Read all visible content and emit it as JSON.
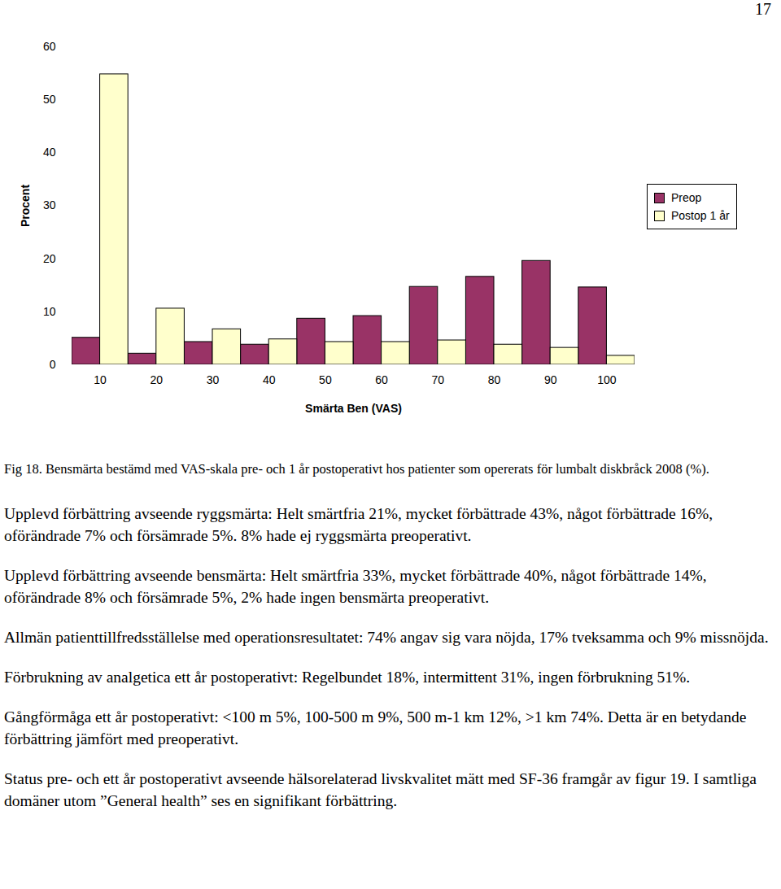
{
  "page_number": "17",
  "chart_data": {
    "type": "bar",
    "xlabel": "Smärta Ben (VAS)",
    "ylabel": "Procent",
    "categories": [
      "10",
      "20",
      "30",
      "40",
      "50",
      "60",
      "70",
      "80",
      "90",
      "100"
    ],
    "series": [
      {
        "name": "Preop",
        "color": "#993366",
        "values": [
          5.1,
          2.1,
          4.3,
          3.8,
          8.7,
          9.2,
          14.7,
          16.6,
          19.6,
          14.6
        ]
      },
      {
        "name": "Postop 1 år",
        "color": "#ffffcc",
        "values": [
          54.8,
          10.6,
          6.7,
          4.8,
          4.3,
          4.3,
          4.6,
          3.8,
          3.2,
          1.7
        ]
      }
    ],
    "ylim": [
      0,
      60
    ],
    "yticks": [
      0,
      10,
      20,
      30,
      40,
      50,
      60
    ],
    "grid": false,
    "legend": "right"
  },
  "caption": "Fig 18. Bensmärta bestämd med VAS-skala pre- och 1 år postoperativt hos patienter som opererats för lumbalt diskbråck 2008 (%).",
  "paragraphs": [
    "Upplevd förbättring avseende ryggsmärta: Helt smärtfria 21%, mycket förbättrade 43%, något förbättrade 16%, oförändrade 7% och försämrade 5%. 8% hade ej ryggsmärta preoperativt.",
    "Upplevd förbättring avseende bensmärta: Helt smärtfria 33%, mycket förbättrade 40%, något förbättrade 14%, oförändrade 8% och försämrade 5%, 2% hade ingen bensmärta preoperativt.",
    "Allmän patienttillfredsställelse med operationsresultatet: 74% angav sig vara nöjda, 17% tveksamma och 9% missnöjda.",
    "Förbrukning av analgetica ett år postoperativt: Regelbundet 18%, intermittent 31%, ingen förbrukning 51%.",
    "Gångförmåga ett år postoperativt: <100 m 5%, 100-500 m 9%, 500 m-1 km 12%, >1 km 74%. Detta är en betydande förbättring jämfört med preoperativt.",
    "Status pre- och ett år postoperativt avseende hälsorelaterad livskvalitet mätt med SF-36 framgår av figur 19. I samtliga domäner utom ”General health” ses en signifikant förbättring."
  ]
}
